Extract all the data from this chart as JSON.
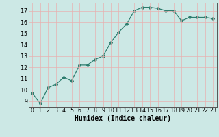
{
  "x": [
    0,
    1,
    2,
    3,
    4,
    5,
    6,
    7,
    8,
    9,
    10,
    11,
    12,
    13,
    14,
    15,
    16,
    17,
    18,
    19,
    20,
    21,
    22,
    23
  ],
  "y": [
    9.7,
    8.8,
    10.2,
    10.5,
    11.1,
    10.8,
    12.2,
    12.2,
    12.7,
    13.0,
    14.2,
    15.1,
    15.8,
    17.0,
    17.3,
    17.3,
    17.2,
    17.0,
    17.0,
    16.1,
    16.4,
    16.4,
    16.4,
    16.3
  ],
  "line_color": "#2d7d6e",
  "marker": "D",
  "marker_size": 2.0,
  "bg_color": "#cce8e5",
  "grid_color": "#e8b0b0",
  "xlabel": "Humidex (Indice chaleur)",
  "xlim": [
    -0.5,
    23.5
  ],
  "ylim": [
    8.5,
    17.7
  ],
  "yticks": [
    9,
    10,
    11,
    12,
    13,
    14,
    15,
    16,
    17
  ],
  "xticks": [
    0,
    1,
    2,
    3,
    4,
    5,
    6,
    7,
    8,
    9,
    10,
    11,
    12,
    13,
    14,
    15,
    16,
    17,
    18,
    19,
    20,
    21,
    22,
    23
  ],
  "xlabel_fontsize": 7,
  "tick_fontsize": 6
}
